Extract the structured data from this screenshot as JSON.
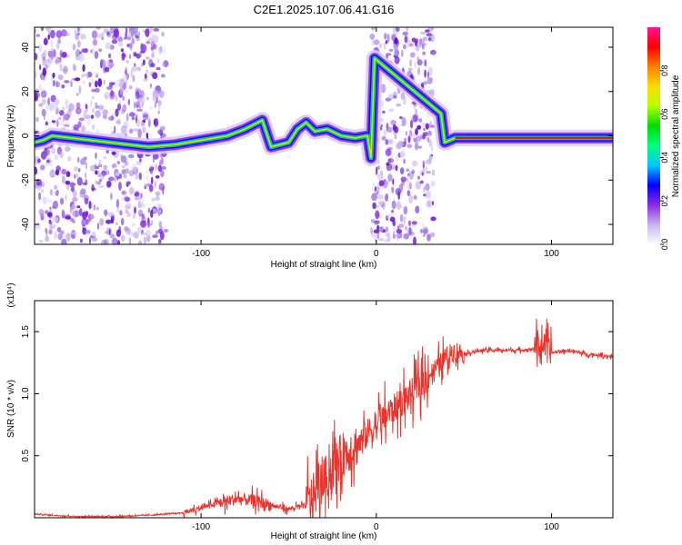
{
  "title": "C2E1.2025.107.06.41.G16",
  "chart_data": [
    {
      "type": "heatmap",
      "xlabel": "Height of straight line (km)",
      "ylabel": "Frequency (Hz)",
      "xlim": [
        -195,
        135
      ],
      "ylim": [
        -49,
        49
      ],
      "x_ticks": [
        -100,
        0,
        100
      ],
      "y_ticks": [
        -40,
        -20,
        0,
        20,
        40
      ],
      "colorbar": {
        "label": "Normalized spectral amplitude",
        "range": [
          0.0,
          1.0
        ],
        "ticks": [
          "0.0",
          "0.2",
          "0.4",
          "0.6",
          "0.8"
        ],
        "colors": [
          "#ffffff",
          "#c8b4f0",
          "#8a2be2",
          "#0000ff",
          "#00c8ff",
          "#00ff7f",
          "#00dc00",
          "#b4ff00",
          "#ffdc00",
          "#ff7f00",
          "#ff0000",
          "#ff1493"
        ]
      },
      "noise_regions_km": [
        [
          -195,
          -120
        ],
        [
          -3,
          33
        ]
      ],
      "signal_ridge": [
        {
          "x": -195,
          "y": -3
        },
        {
          "x": -190,
          "y": -2
        },
        {
          "x": -185,
          "y": 0
        },
        {
          "x": -130,
          "y": -5
        },
        {
          "x": -115,
          "y": -4
        },
        {
          "x": -100,
          "y": -2
        },
        {
          "x": -85,
          "y": 0
        },
        {
          "x": -75,
          "y": 3
        },
        {
          "x": -65,
          "y": 7
        },
        {
          "x": -60,
          "y": -5
        },
        {
          "x": -50,
          "y": -3
        },
        {
          "x": -45,
          "y": 3
        },
        {
          "x": -40,
          "y": 6
        },
        {
          "x": -35,
          "y": 2
        },
        {
          "x": -28,
          "y": 3
        },
        {
          "x": -20,
          "y": 0
        },
        {
          "x": -12,
          "y": -1
        },
        {
          "x": -5,
          "y": 0
        },
        {
          "x": -3,
          "y": -10
        },
        {
          "x": -1,
          "y": 35
        },
        {
          "x": 37,
          "y": 10
        },
        {
          "x": 39,
          "y": -3
        },
        {
          "x": 45,
          "y": -1
        },
        {
          "x": 100,
          "y": -1
        },
        {
          "x": 135,
          "y": -1
        }
      ]
    },
    {
      "type": "line",
      "xlabel": "Height of straight line (km)",
      "ylabel": "SNR (10 * v/v)",
      "y_scale_label": "(x10⁴)",
      "xlim": [
        -195,
        135
      ],
      "ylim": [
        0,
        1.75
      ],
      "x_ticks": [
        -100,
        0,
        100
      ],
      "y_ticks": [
        0.5,
        1.0,
        1.5
      ],
      "line_color": "#e8342c",
      "series": [
        {
          "x": [
            -195,
            -185,
            -170,
            -150,
            -130,
            -110,
            -100,
            -90,
            -80,
            -70,
            -60,
            -50,
            -40,
            -35,
            -30,
            -25,
            -20,
            -15,
            -10,
            -5,
            0,
            10,
            20,
            30,
            40,
            45,
            50,
            60,
            70,
            80,
            90,
            95,
            100,
            110,
            120,
            135
          ],
          "values": [
            0.03,
            0.02,
            0.01,
            0.01,
            0.02,
            0.04,
            0.08,
            0.12,
            0.15,
            0.14,
            0.1,
            0.07,
            0.1,
            0.2,
            0.3,
            0.4,
            0.5,
            0.55,
            0.6,
            0.68,
            0.75,
            0.88,
            1.0,
            1.15,
            1.3,
            1.35,
            1.32,
            1.35,
            1.35,
            1.35,
            1.36,
            1.4,
            1.33,
            1.35,
            1.32,
            1.3
          ]
        }
      ]
    }
  ]
}
